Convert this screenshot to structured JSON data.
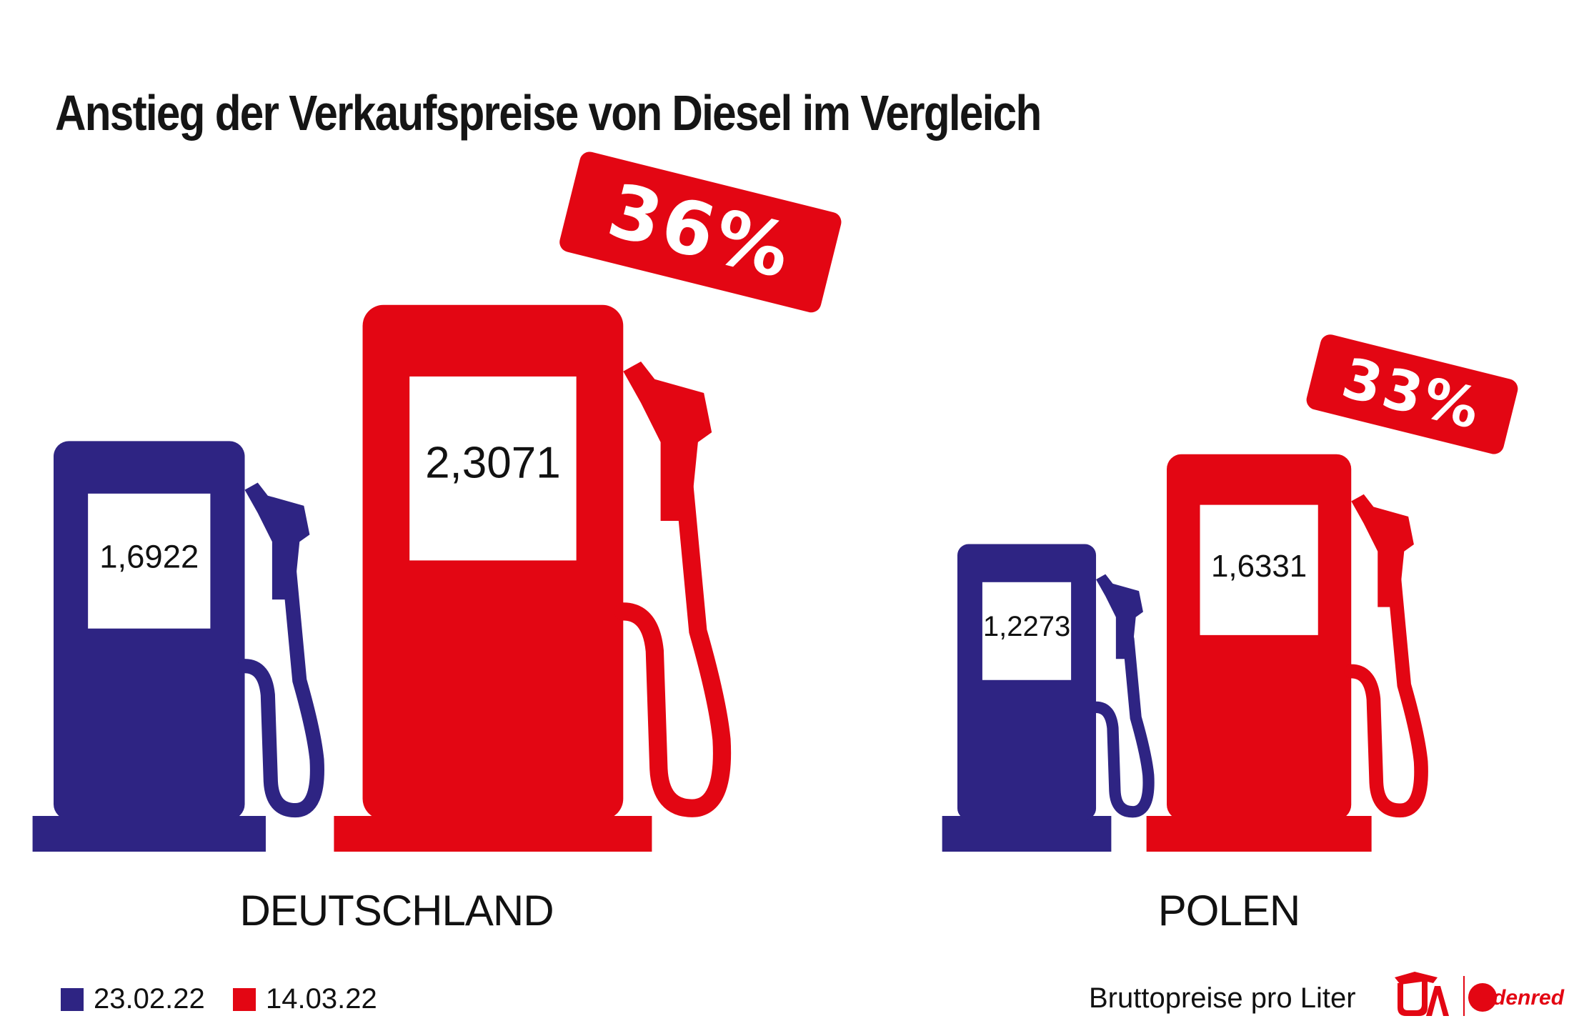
{
  "title": "Anstieg der Verkaufspreise von Diesel im Vergleich",
  "footnote": "Bruttopreise pro Liter",
  "colors": {
    "before": "#2e2483",
    "after": "#e30613",
    "text": "#151515"
  },
  "legend": [
    {
      "label": "23.02.22",
      "color": "#2e2483"
    },
    {
      "label": "14.03.22",
      "color": "#e30613"
    }
  ],
  "chart_data": {
    "type": "bar",
    "title": "Anstieg der Verkaufspreise von Diesel im Vergleich",
    "categories": [
      "DEUTSCHLAND",
      "POLEN"
    ],
    "series": [
      {
        "name": "23.02.22",
        "values": [
          1.6922,
          1.2273
        ],
        "labels": [
          "1,6922",
          "1,2273"
        ]
      },
      {
        "name": "14.03.22",
        "values": [
          2.3071,
          1.6331
        ],
        "labels": [
          "2,3071",
          "1,6331"
        ]
      }
    ],
    "increase_labels": [
      "36%",
      "33%"
    ],
    "unit": "Bruttopreise pro Liter",
    "grid": false,
    "legend_position": "bottom-left"
  },
  "logos": [
    "UTA logo",
    "Edenred logo"
  ],
  "logo_text": {
    "uta": "UTA",
    "edenred": "Edenred"
  }
}
